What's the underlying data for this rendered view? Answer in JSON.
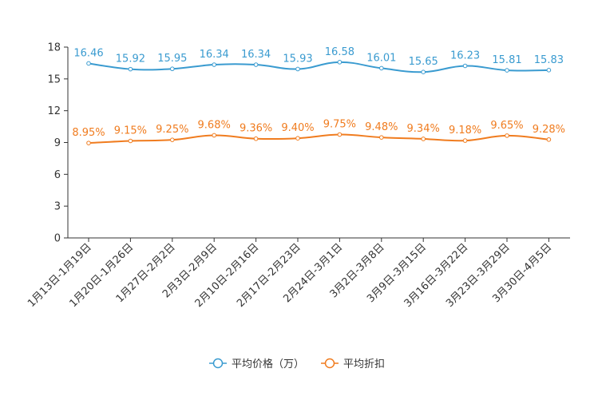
{
  "chart_data": {
    "type": "line",
    "title": "",
    "xlabel": "",
    "ylabel": "",
    "ylim": [
      0,
      18
    ],
    "yticks": [
      "0",
      "3",
      "6",
      "9",
      "12",
      "15",
      "18"
    ],
    "grid": false,
    "legend_position": "bottom",
    "categories": [
      "1月13日-1月19日",
      "1月20日-1月26日",
      "1月27日-2月2日",
      "2月3日-2月9日",
      "2月10日-2月16日",
      "2月17日-2月23日",
      "2月24日-3月1日",
      "3月2日-3月8日",
      "3月9日-3月15日",
      "3月16日-3月22日",
      "3月23日-3月29日",
      "3月30日-4月5日"
    ],
    "series": [
      {
        "name": "平均价格（万）",
        "color": "#3a9bd0",
        "values": [
          16.46,
          15.92,
          15.95,
          16.34,
          16.34,
          15.93,
          16.58,
          16.01,
          15.65,
          16.23,
          15.81,
          15.83
        ],
        "labels": [
          "16.46",
          "15.92",
          "15.95",
          "16.34",
          "16.34",
          "15.93",
          "16.58",
          "16.01",
          "15.65",
          "16.23",
          "15.81",
          "15.83"
        ]
      },
      {
        "name": "平均折扣",
        "color": "#f07c1f",
        "values": [
          8.95,
          9.15,
          9.25,
          9.68,
          9.36,
          9.4,
          9.75,
          9.48,
          9.34,
          9.18,
          9.65,
          9.28
        ],
        "labels": [
          "8.95%",
          "9.15%",
          "9.25%",
          "9.68%",
          "9.36%",
          "9.40%",
          "9.75%",
          "9.48%",
          "9.34%",
          "9.18%",
          "9.65%",
          "9.28%"
        ]
      }
    ]
  }
}
